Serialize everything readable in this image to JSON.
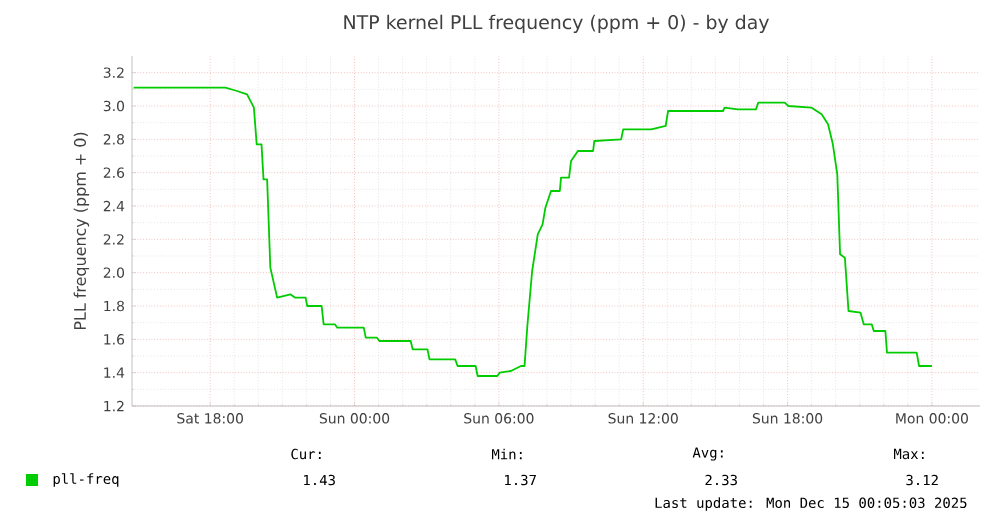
{
  "chart_data": {
    "type": "line",
    "title": "NTP kernel PLL frequency (ppm + 0) - by day",
    "ylabel": "PLL frequency (ppm + 0)",
    "xlim": [
      "2025-12-13T14:45",
      "2025-12-15T02:00"
    ],
    "ylim": [
      1.2,
      3.3
    ],
    "xticks": [
      {
        "value": "2025-12-13T18:00",
        "label": "Sat 18:00"
      },
      {
        "value": "2025-12-14T00:00",
        "label": "Sun 00:00"
      },
      {
        "value": "2025-12-14T06:00",
        "label": "Sun 06:00"
      },
      {
        "value": "2025-12-14T12:00",
        "label": "Sun 12:00"
      },
      {
        "value": "2025-12-14T18:00",
        "label": "Sun 18:00"
      },
      {
        "value": "2025-12-15T00:00",
        "label": "Mon 00:00"
      }
    ],
    "yticks": [
      1.2,
      1.4,
      1.6,
      1.8,
      {
        "value": 2,
        "label": "2.0"
      },
      2.2,
      2.4,
      2.6,
      2.8,
      {
        "value": 3,
        "label": "3.0"
      },
      3.2
    ],
    "grid": true,
    "legend": "bottom",
    "series": [
      {
        "name": "pll-freq",
        "color": "#00cc00",
        "x": [
          "2025-12-13T14:49",
          "2025-12-13T18:38",
          "2025-12-13T19:07",
          "2025-12-13T19:32",
          "2025-12-13T19:49",
          "2025-12-13T19:56",
          "2025-12-13T20:08",
          "2025-12-13T20:13",
          "2025-12-13T20:22",
          "2025-12-13T20:30",
          "2025-12-13T20:47",
          "2025-12-13T21:20",
          "2025-12-13T21:32",
          "2025-12-13T21:58",
          "2025-12-13T22:02",
          "2025-12-13T22:38",
          "2025-12-13T22:43",
          "2025-12-13T23:11",
          "2025-12-13T23:17",
          "2025-12-14T00:23",
          "2025-12-14T00:28",
          "2025-12-14T00:56",
          "2025-12-14T01:02",
          "2025-12-14T02:20",
          "2025-12-14T02:25",
          "2025-12-14T03:02",
          "2025-12-14T03:07",
          "2025-12-14T04:11",
          "2025-12-14T04:17",
          "2025-12-14T05:02",
          "2025-12-14T05:07",
          "2025-12-14T05:56",
          "2025-12-14T06:02",
          "2025-12-14T06:30",
          "2025-12-14T06:55",
          "2025-12-14T07:04",
          "2025-12-14T07:11",
          "2025-12-14T07:23",
          "2025-12-14T07:37",
          "2025-12-14T07:49",
          "2025-12-14T07:56",
          "2025-12-14T08:10",
          "2025-12-14T08:32",
          "2025-12-14T08:35",
          "2025-12-14T08:55",
          "2025-12-14T09:00",
          "2025-12-14T09:17",
          "2025-12-14T09:55",
          "2025-12-14T09:58",
          "2025-12-14T11:05",
          "2025-12-14T11:10",
          "2025-12-14T12:20",
          "2025-12-14T12:56",
          "2025-12-14T13:02",
          "2025-12-14T15:19",
          "2025-12-14T15:23",
          "2025-12-14T15:56",
          "2025-12-14T16:41",
          "2025-12-14T16:47",
          "2025-12-14T17:53",
          "2025-12-14T18:02",
          "2025-12-14T19:00",
          "2025-12-14T19:25",
          "2025-12-14T19:41",
          "2025-12-14T19:53",
          "2025-12-14T20:04",
          "2025-12-14T20:11",
          "2025-12-14T20:23",
          "2025-12-14T20:32",
          "2025-12-14T21:02",
          "2025-12-14T21:10",
          "2025-12-14T21:30",
          "2025-12-14T21:35",
          "2025-12-14T22:04",
          "2025-12-14T22:08",
          "2025-12-14T23:22",
          "2025-12-14T23:28",
          "2025-12-15T00:00"
        ],
        "values": [
          3.11,
          3.11,
          3.09,
          3.07,
          2.99,
          2.77,
          2.77,
          2.56,
          2.56,
          2.03,
          1.85,
          1.87,
          1.85,
          1.85,
          1.8,
          1.8,
          1.69,
          1.69,
          1.67,
          1.67,
          1.61,
          1.61,
          1.59,
          1.59,
          1.54,
          1.54,
          1.48,
          1.48,
          1.44,
          1.44,
          1.38,
          1.38,
          1.4,
          1.41,
          1.44,
          1.44,
          1.68,
          2.01,
          2.23,
          2.29,
          2.39,
          2.49,
          2.49,
          2.57,
          2.57,
          2.67,
          2.73,
          2.73,
          2.79,
          2.8,
          2.86,
          2.86,
          2.88,
          2.97,
          2.97,
          2.99,
          2.98,
          2.98,
          3.02,
          3.02,
          3.0,
          2.99,
          2.95,
          2.89,
          2.77,
          2.59,
          2.11,
          2.09,
          1.77,
          1.76,
          1.69,
          1.69,
          1.65,
          1.65,
          1.52,
          1.52,
          1.44,
          1.44
        ]
      }
    ],
    "annotations": [
      "Cur:",
      "Min:",
      "Avg:",
      "Max:",
      "1.43",
      "1.37",
      "2.33",
      "3.12",
      "Last update: Mon Dec 15 00:05:03 2025"
    ]
  }
}
